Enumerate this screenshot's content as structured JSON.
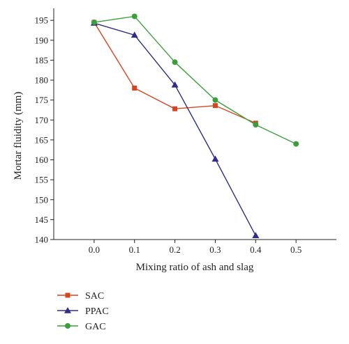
{
  "chart_data": {
    "type": "line",
    "title": "",
    "xlabel": "Mixing ratio of ash and slag",
    "ylabel": "Mortar fluidity (mm)",
    "xlim": [
      -0.1,
      0.6
    ],
    "ylim": [
      140,
      198
    ],
    "xticks": [
      "0.0",
      "0.1",
      "0.2",
      "0.3",
      "0.4",
      "0.5"
    ],
    "yticks": [
      "140",
      "145",
      "150",
      "155",
      "160",
      "165",
      "170",
      "175",
      "180",
      "185",
      "190",
      "195"
    ],
    "grid": false,
    "legend_position": "bottom-left",
    "series": [
      {
        "name": "SAC",
        "marker": "square",
        "color": "#d9431e",
        "x": [
          0.0,
          0.1,
          0.2,
          0.3,
          0.4
        ],
        "y": [
          194.5,
          178.0,
          172.8,
          173.6,
          169.2
        ]
      },
      {
        "name": "PPAC",
        "marker": "triangle",
        "color": "#2e2e86",
        "x": [
          0.0,
          0.1,
          0.2,
          0.3,
          0.4
        ],
        "y": [
          194.3,
          191.3,
          178.8,
          160.2,
          141.0
        ]
      },
      {
        "name": "GAC",
        "marker": "circle",
        "color": "#3c9e3c",
        "x": [
          0.0,
          0.1,
          0.2,
          0.3,
          0.4,
          0.5
        ],
        "y": [
          194.5,
          196.0,
          184.5,
          175.0,
          168.8,
          164.0
        ]
      }
    ]
  }
}
